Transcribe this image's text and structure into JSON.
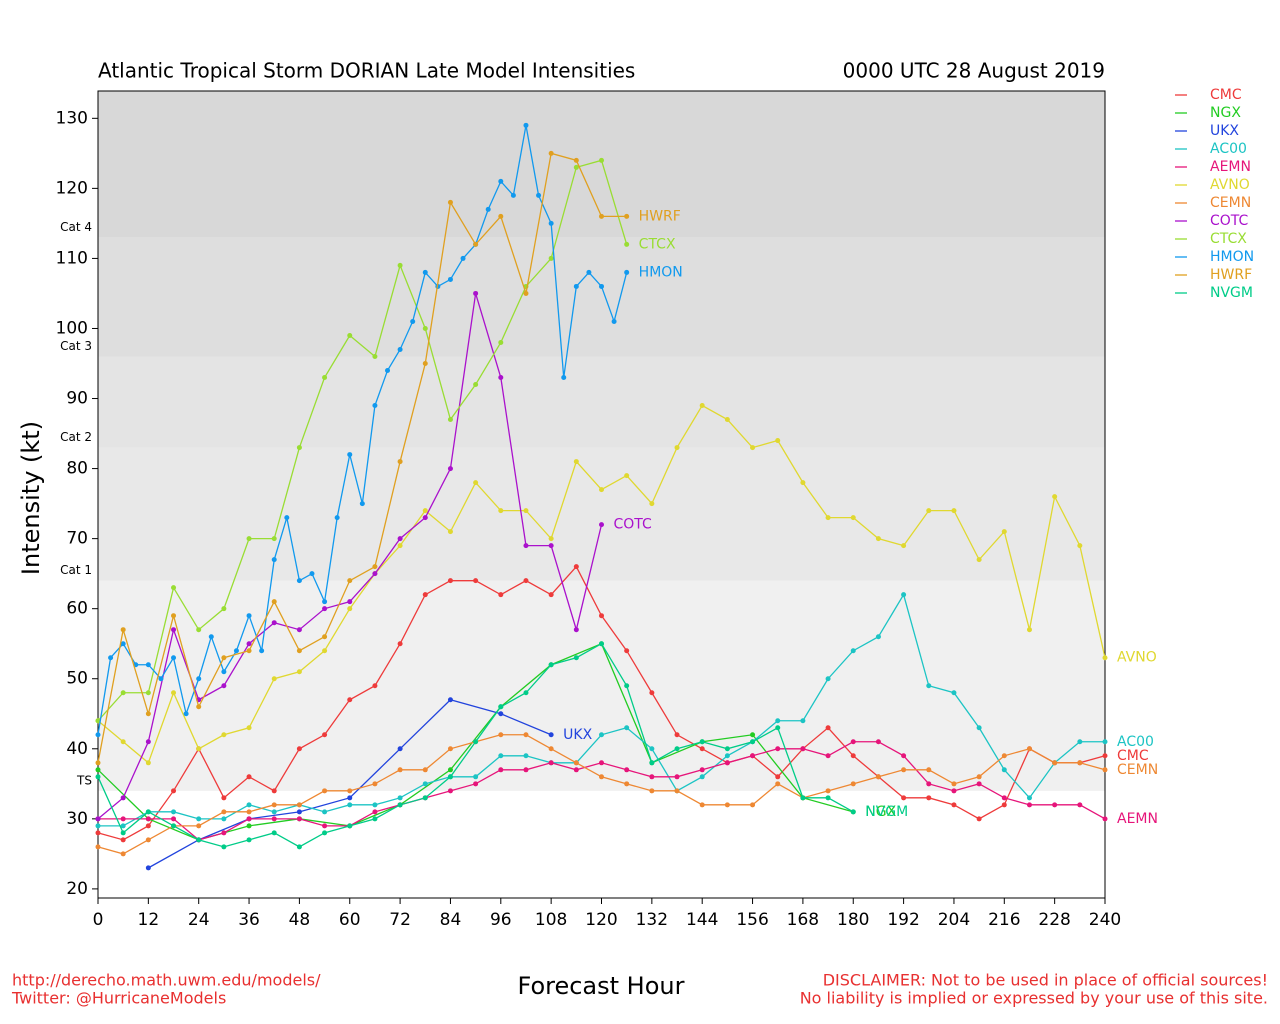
{
  "chart_data": {
    "type": "line",
    "title": "Atlantic Tropical Storm DORIAN Late Model Intensities",
    "subtitle": "0000 UTC 28 August 2019",
    "xlabel": "Forecast Hour",
    "ylabel": "Intensity (kt)",
    "footer_left": [
      "http://derecho.math.uwm.edu/models/",
      "Twitter: @HurricaneModels"
    ],
    "footer_right": [
      "DISCLAIMER: Not to be used in place of official sources!",
      "No liability is implied or expressed by your use of this site."
    ],
    "xlim": [
      0,
      240
    ],
    "xticks": [
      0,
      12,
      24,
      36,
      48,
      60,
      72,
      84,
      96,
      108,
      120,
      132,
      144,
      156,
      168,
      180,
      192,
      204,
      216,
      228,
      240
    ],
    "ylim": [
      18.7,
      133.9
    ],
    "yticks": [
      20,
      30,
      40,
      50,
      60,
      70,
      80,
      90,
      100,
      110,
      120,
      130
    ],
    "bands": [
      {
        "value": 34,
        "label": "TS",
        "color": "#f0f0f0"
      },
      {
        "value": 64,
        "label": "Cat 1",
        "color": "#e8e8e8"
      },
      {
        "value": 83,
        "label": "Cat 2",
        "color": "#e4e4e4"
      },
      {
        "value": 96,
        "label": "Cat 3",
        "color": "#dedede"
      },
      {
        "value": 113,
        "label": "Cat 4",
        "color": "#d8d8d8"
      }
    ],
    "series": [
      {
        "name": "CMC",
        "color": "#ee3b3b",
        "x": [
          0,
          6,
          12,
          18,
          24,
          30,
          36,
          42,
          48,
          54,
          60,
          66,
          72,
          78,
          84,
          90,
          96,
          102,
          108,
          114,
          120,
          126,
          132,
          138,
          144,
          150,
          156,
          162,
          168,
          174,
          180,
          186,
          192,
          198,
          204,
          210,
          216,
          222,
          228,
          234,
          240
        ],
        "values": [
          28,
          27,
          29,
          34,
          40,
          33,
          36,
          34,
          40,
          42,
          47,
          49,
          55,
          62,
          64,
          64,
          62,
          64,
          62,
          66,
          59,
          54,
          48,
          42,
          40,
          38,
          39,
          36,
          40,
          43,
          39,
          36,
          33,
          33,
          32,
          30,
          32,
          40,
          38,
          38,
          39
        ]
      },
      {
        "name": "NGX",
        "color": "#22cc22",
        "x": [
          0,
          12,
          24,
          36,
          48,
          60,
          72,
          84,
          96,
          108,
          120,
          132,
          144,
          156,
          168,
          180
        ],
        "values": [
          37,
          30,
          27,
          29,
          30,
          29,
          32,
          37,
          46,
          52,
          55,
          38,
          41,
          42,
          33,
          31
        ]
      },
      {
        "name": "UKX",
        "color": "#2244dd",
        "x": [
          12,
          24,
          36,
          48,
          60,
          72,
          84,
          96,
          108
        ],
        "values": [
          23,
          27,
          30,
          31,
          33,
          40,
          47,
          45,
          42
        ]
      },
      {
        "name": "AC00",
        "color": "#1cc4c4",
        "x": [
          0,
          6,
          12,
          18,
          24,
          30,
          36,
          42,
          48,
          54,
          60,
          66,
          72,
          78,
          84,
          90,
          96,
          102,
          108,
          114,
          120,
          126,
          132,
          138,
          144,
          150,
          156,
          162,
          168,
          174,
          180,
          186,
          192,
          198,
          204,
          210,
          216,
          222,
          228,
          234,
          240
        ],
        "values": [
          29,
          29,
          31,
          31,
          30,
          30,
          32,
          31,
          32,
          31,
          32,
          32,
          33,
          35,
          36,
          36,
          39,
          39,
          38,
          38,
          42,
          43,
          40,
          34,
          36,
          39,
          41,
          44,
          44,
          50,
          54,
          56,
          62,
          49,
          48,
          43,
          37,
          33,
          38,
          41,
          41
        ]
      },
      {
        "name": "AEMN",
        "color": "#e6157a",
        "x": [
          0,
          6,
          12,
          18,
          24,
          30,
          36,
          42,
          48,
          54,
          60,
          66,
          72,
          78,
          84,
          90,
          96,
          102,
          108,
          114,
          120,
          126,
          132,
          138,
          144,
          150,
          156,
          162,
          168,
          174,
          180,
          186,
          192,
          198,
          204,
          210,
          216,
          222,
          228,
          234,
          240
        ],
        "values": [
          30,
          30,
          30,
          30,
          27,
          28,
          30,
          30,
          30,
          29,
          29,
          31,
          32,
          33,
          34,
          35,
          37,
          37,
          38,
          37,
          38,
          37,
          36,
          36,
          37,
          38,
          39,
          40,
          40,
          39,
          41,
          41,
          39,
          35,
          34,
          35,
          33,
          32,
          32,
          32,
          30
        ]
      },
      {
        "name": "AVNO",
        "color": "#e0d830",
        "x": [
          0,
          6,
          12,
          18,
          24,
          30,
          36,
          42,
          48,
          54,
          60,
          66,
          72,
          78,
          84,
          90,
          96,
          102,
          108,
          114,
          120,
          126,
          132,
          138,
          144,
          150,
          156,
          162,
          168,
          174,
          180,
          186,
          192,
          198,
          204,
          210,
          216,
          222,
          228,
          234,
          240
        ],
        "values": [
          44,
          41,
          38,
          48,
          40,
          42,
          43,
          50,
          51,
          54,
          60,
          65,
          69,
          74,
          71,
          78,
          74,
          74,
          70,
          81,
          77,
          79,
          75,
          83,
          89,
          87,
          83,
          84,
          78,
          73,
          73,
          70,
          69,
          74,
          74,
          67,
          71,
          57,
          76,
          69,
          53
        ]
      },
      {
        "name": "CEMN",
        "color": "#ee8833",
        "x": [
          0,
          6,
          12,
          18,
          24,
          30,
          36,
          42,
          48,
          54,
          60,
          66,
          72,
          78,
          84,
          90,
          96,
          102,
          108,
          114,
          120,
          126,
          132,
          138,
          144,
          150,
          156,
          162,
          168,
          174,
          180,
          186,
          192,
          198,
          204,
          210,
          216,
          222,
          228,
          234,
          240
        ],
        "values": [
          26,
          25,
          27,
          29,
          29,
          31,
          31,
          32,
          32,
          34,
          34,
          35,
          37,
          37,
          40,
          41,
          42,
          42,
          40,
          38,
          36,
          35,
          34,
          34,
          32,
          32,
          32,
          35,
          33,
          34,
          35,
          36,
          37,
          37,
          35,
          36,
          39,
          40,
          38,
          38,
          37
        ]
      },
      {
        "name": "COTC",
        "color": "#aa11cc",
        "x": [
          0,
          6,
          12,
          18,
          24,
          30,
          36,
          42,
          48,
          54,
          60,
          66,
          72,
          78,
          84,
          90,
          96,
          102,
          108,
          114,
          120
        ],
        "values": [
          30,
          33,
          41,
          57,
          47,
          49,
          55,
          58,
          57,
          60,
          61,
          65,
          70,
          73,
          80,
          105,
          93,
          69,
          69,
          57,
          72
        ]
      },
      {
        "name": "CTCX",
        "color": "#99dd33",
        "x": [
          0,
          6,
          12,
          18,
          24,
          30,
          36,
          42,
          48,
          54,
          60,
          66,
          72,
          78,
          84,
          90,
          96,
          102,
          108,
          114,
          120,
          126
        ],
        "values": [
          44,
          48,
          48,
          63,
          57,
          60,
          70,
          70,
          83,
          93,
          99,
          96,
          109,
          100,
          87,
          92,
          98,
          106,
          110,
          123,
          124,
          112
        ]
      },
      {
        "name": "HMON",
        "color": "#1199ee",
        "x": [
          0,
          3,
          6,
          9,
          12,
          15,
          18,
          21,
          24,
          27,
          30,
          33,
          36,
          39,
          42,
          45,
          48,
          51,
          54,
          57,
          60,
          63,
          66,
          69,
          72,
          75,
          78,
          81,
          84,
          87,
          90,
          93,
          96,
          99,
          102,
          105,
          108,
          111,
          114,
          117,
          120,
          123,
          126
        ],
        "values": [
          42,
          53,
          55,
          52,
          52,
          50,
          53,
          45,
          50,
          56,
          51,
          54,
          59,
          54,
          67,
          73,
          64,
          65,
          61,
          73,
          82,
          75,
          89,
          94,
          97,
          101,
          108,
          106,
          107,
          110,
          112,
          117,
          121,
          119,
          129,
          119,
          115,
          93,
          106,
          108,
          106,
          101,
          108
        ]
      },
      {
        "name": "HWRF",
        "color": "#e0a020",
        "x": [
          0,
          6,
          12,
          18,
          24,
          30,
          36,
          42,
          48,
          54,
          60,
          66,
          72,
          78,
          84,
          90,
          96,
          102,
          108,
          114,
          120,
          126
        ],
        "values": [
          38,
          57,
          45,
          59,
          46,
          53,
          54,
          61,
          54,
          56,
          64,
          66,
          81,
          95,
          118,
          112,
          116,
          105,
          125,
          124,
          116,
          116
        ]
      },
      {
        "name": "NVGM",
        "color": "#00cc88",
        "x": [
          0,
          6,
          12,
          18,
          24,
          30,
          36,
          42,
          48,
          54,
          60,
          66,
          72,
          78,
          84,
          90,
          96,
          102,
          108,
          114,
          120,
          126,
          132,
          138,
          144,
          150,
          156,
          162,
          168,
          174,
          180
        ],
        "values": [
          36,
          28,
          31,
          29,
          27,
          26,
          27,
          28,
          26,
          28,
          29,
          30,
          32,
          33,
          36,
          41,
          46,
          48,
          52,
          53,
          55,
          49,
          38,
          40,
          41,
          40,
          41,
          43,
          33,
          33,
          31
        ]
      }
    ]
  }
}
